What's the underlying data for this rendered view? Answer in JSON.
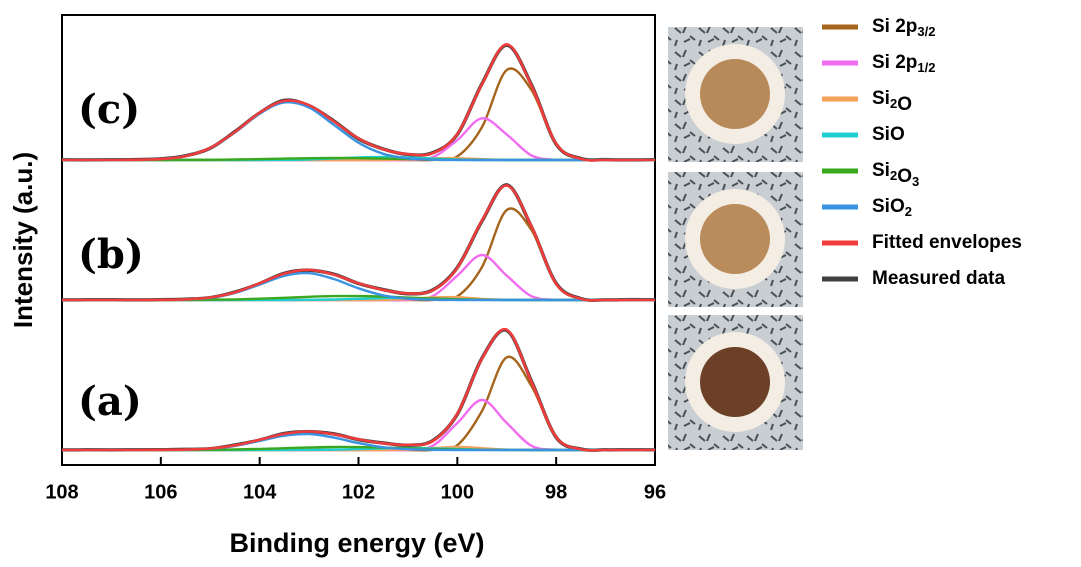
{
  "chart_data": {
    "type": "line",
    "xlabel": "Binding energy (eV)",
    "ylabel": "Intensity (a.u.)",
    "panels": [
      "(a)",
      "(b)",
      "(c)"
    ],
    "x": [
      96,
      96.5,
      97,
      97.5,
      98,
      98.5,
      99,
      99.5,
      100,
      100.5,
      101,
      101.5,
      102,
      102.5,
      103,
      103.5,
      104,
      104.5,
      105,
      105.5,
      106,
      106.5,
      107,
      107.5,
      108
    ],
    "xlim": [
      108,
      96
    ],
    "xticks": [
      108,
      106,
      104,
      102,
      100,
      98,
      96
    ],
    "series": [
      {
        "name": "Si 2p3/2",
        "color": "#a5651c",
        "values": [
          [
            0,
            0,
            0,
            0.7,
            12.8,
            64.0,
            92.7,
            39.1,
            4.8,
            0.1,
            0,
            0,
            0,
            0,
            0,
            0,
            0,
            0,
            0,
            0,
            0,
            0,
            0,
            0,
            0
          ],
          [
            0,
            0,
            0,
            1.1,
            16,
            70,
            90,
            33,
            3.6,
            0.1,
            0,
            0,
            0,
            0,
            0,
            0,
            0,
            0,
            0,
            0,
            0,
            0,
            0,
            0,
            0
          ],
          [
            0,
            0,
            0,
            1.1,
            16,
            70,
            90,
            33,
            3.6,
            0.1,
            0,
            0,
            0,
            0,
            0,
            0,
            0,
            0,
            0,
            0,
            0,
            0,
            0,
            0,
            0
          ]
        ]
      },
      {
        "name": "Si 2p1/2",
        "color": "#f26cf2",
        "values": [
          [
            0,
            0,
            0,
            0,
            0.2,
            4.2,
            27.0,
            50,
            27.0,
            4.2,
            0.2,
            0,
            0,
            0,
            0,
            0,
            0,
            0,
            0,
            0,
            0,
            0,
            0,
            0,
            0
          ],
          [
            0,
            0,
            0,
            0,
            0.2,
            3.8,
            24.3,
            45,
            24.3,
            3.8,
            0.2,
            0,
            0,
            0,
            0,
            0,
            0,
            0,
            0,
            0,
            0,
            0,
            0,
            0,
            0
          ],
          [
            0,
            0,
            0,
            0,
            0.2,
            4.5,
            25.5,
            41.7,
            19.9,
            2.8,
            0.1,
            0,
            0,
            0,
            0,
            0,
            0,
            0,
            0,
            0,
            0,
            0,
            0,
            0,
            0
          ]
        ]
      },
      {
        "name": "Si2O",
        "color": "#f4a25a",
        "values": [
          [
            0,
            0,
            0,
            0,
            0,
            0,
            0.4,
            1.8,
            3,
            1.8,
            0.4,
            0,
            0,
            0,
            0,
            0,
            0,
            0,
            0,
            0,
            0,
            0,
            0,
            0,
            0
          ],
          [
            0,
            0,
            0,
            0,
            0,
            0,
            0.2,
            1.1,
            2.8,
            2.5,
            0.8,
            0.2,
            0,
            0,
            0,
            0,
            0,
            0,
            0,
            0,
            0,
            0,
            0,
            0,
            0
          ],
          [
            0,
            0,
            0,
            0,
            0,
            0,
            0.1,
            0.8,
            1.8,
            1.7,
            0.6,
            0.1,
            0,
            0,
            0,
            0,
            0,
            0,
            0,
            0,
            0,
            0,
            0,
            0,
            0
          ]
        ]
      },
      {
        "name": "SiO",
        "color": "#1fcfcf",
        "values": [
          [
            0,
            0,
            0,
            0,
            0,
            0,
            0.1,
            0.3,
            0.9,
            1.6,
            2,
            1.6,
            0.9,
            0.3,
            0.1,
            0,
            0,
            0,
            0,
            0,
            0,
            0,
            0,
            0,
            0
          ],
          [
            0,
            0,
            0,
            0,
            0,
            0,
            0,
            0.2,
            0.6,
            1.4,
            1.9,
            1.9,
            1.2,
            0.5,
            0.2,
            0,
            0,
            0,
            0,
            0,
            0,
            0,
            0,
            0,
            0
          ],
          [
            0,
            0,
            0,
            0,
            0,
            0,
            0,
            0.1,
            0.5,
            1.4,
            2.5,
            3,
            2.5,
            1.4,
            0.5,
            0.1,
            0,
            0,
            0,
            0,
            0,
            0,
            0,
            0,
            0
          ]
        ]
      },
      {
        "name": "Si2O3",
        "color": "#3aa81e",
        "values": [
          [
            0,
            0,
            0,
            0,
            0,
            0,
            0.1,
            0.2,
            0.5,
            1.0,
            1.7,
            2.4,
            2.9,
            3.0,
            2.5,
            1.8,
            1.1,
            0.6,
            0.2,
            0.1,
            0,
            0,
            0,
            0,
            0
          ],
          [
            0,
            0,
            0,
            0,
            0,
            0,
            0.1,
            0.3,
            0.8,
            1.5,
            2.4,
            3.4,
            3.9,
            3.9,
            3.2,
            2.2,
            1.3,
            0.6,
            0.3,
            0.1,
            0,
            0,
            0,
            0,
            0
          ],
          [
            0,
            0,
            0,
            0,
            0,
            0,
            0,
            0.1,
            0.2,
            0.5,
            0.9,
            1.4,
            1.8,
            2,
            1.8,
            1.4,
            0.9,
            0.5,
            0.2,
            0.1,
            0,
            0,
            0,
            0,
            0
          ]
        ]
      },
      {
        "name": "SiO2",
        "color": "#3a93e0",
        "values": [
          [
            0,
            0,
            0,
            0,
            0,
            0,
            0,
            0,
            0,
            0.2,
            0.8,
            2.7,
            6.9,
            12.4,
            15.9,
            14.3,
            9.1,
            4.1,
            1.3,
            0.3,
            0.1,
            0,
            0,
            0,
            0
          ],
          [
            0,
            0,
            0,
            0,
            0,
            0,
            0,
            0,
            0,
            0.3,
            1.3,
            4.6,
            11.7,
            21.0,
            26.8,
            24.2,
            15.4,
            7.0,
            2.2,
            0.5,
            0.1,
            0,
            0,
            0,
            0
          ],
          [
            0,
            0,
            0,
            0,
            0,
            0,
            0,
            0,
            0,
            0.3,
            1.7,
            6.2,
            17.3,
            35.2,
            52.5,
            57.6,
            46.4,
            27.5,
            11.9,
            3.8,
            0.9,
            0.2,
            0,
            0,
            0
          ]
        ]
      },
      {
        "name": "Fitted envelopes",
        "color": "#f03c3c",
        "values": [
          [
            0,
            0,
            0,
            0.7,
            13.0,
            68.2,
            120.3,
            91.4,
            36.2,
            8.9,
            5.1,
            6.7,
            10.7,
            15.7,
            18.5,
            16.1,
            10.2,
            4.7,
            1.5,
            0.4,
            0.1,
            0,
            0,
            0,
            0
          ],
          [
            0,
            0,
            0,
            1.1,
            16.2,
            73.8,
            114.6,
            79.6,
            32.1,
            9.6,
            6.6,
            10.1,
            16.8,
            25.4,
            30.2,
            26.4,
            16.7,
            7.6,
            2.5,
            0.6,
            0.1,
            0,
            0,
            0,
            0
          ],
          [
            0,
            0,
            0,
            1.1,
            16.2,
            74.5,
            115.6,
            75.7,
            26.0,
            6.8,
            5.8,
            10.7,
            21.6,
            38.6,
            54.8,
            59.1,
            47.3,
            28.0,
            12.1,
            3.9,
            0.9,
            0.2,
            0,
            0,
            0
          ]
        ]
      },
      {
        "name": "Measured data",
        "color": "#404040",
        "values": [
          [
            0.1,
            0.3,
            0.2,
            0.9,
            12.7,
            68.8,
            119.6,
            91.9,
            35.8,
            9.3,
            4.8,
            7.0,
            10.4,
            16.1,
            18.2,
            16.5,
            9.9,
            5.0,
            1.2,
            0.6,
            0.2,
            0.3,
            0.1,
            0.2,
            0.1
          ],
          [
            0.2,
            0.4,
            0.1,
            1.4,
            16.6,
            73.2,
            115.1,
            79.0,
            32.5,
            9.9,
            6.3,
            10.4,
            16.5,
            25.8,
            29.8,
            26.7,
            16.4,
            7.9,
            2.3,
            0.8,
            0.3,
            0.1,
            0.3,
            0.2,
            0.1
          ],
          [
            0.3,
            0.1,
            0.4,
            1.5,
            15.8,
            75.2,
            114.9,
            76.3,
            25.6,
            7.2,
            5.5,
            11.0,
            21.2,
            39.1,
            54.3,
            59.6,
            47.0,
            28.4,
            11.8,
            4.2,
            1.1,
            0.4,
            0.2,
            0.1,
            0.2
          ]
        ]
      }
    ]
  }
}
